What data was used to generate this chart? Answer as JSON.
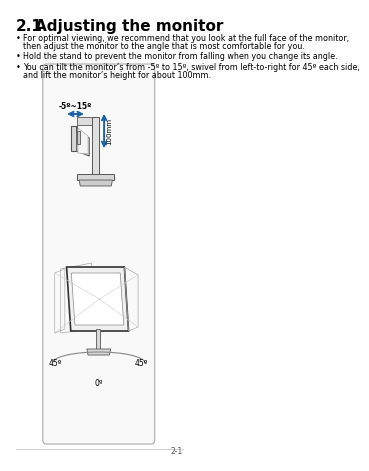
{
  "title_num": "2.1",
  "title_text": "Adjusting the monitor",
  "bullet1_line1": "For optimal viewing, we recommend that you look at the full face of the monitor,",
  "bullet1_line2": "then adjust the monitor to the angle that is most comfortable for you.",
  "bullet2": "Hold the stand to prevent the monitor from falling when you change its angle.",
  "bullet3_line1": "You can tilt the monitor’s from -5º to 15º, swivel from left-to-right for 45º each side,",
  "bullet3_line2": "and lift the monitor’s height for about 100mm.",
  "label_tilt": "-5º~15º",
  "label_height": "100mm",
  "label_45_left": "45º",
  "label_45_right": "45º",
  "label_0": "0º",
  "page_num": "2-1",
  "bg_color": "#ffffff",
  "text_color": "#000000",
  "arrow_color": "#1a5fa8",
  "box_edge_color": "#aaaaaa",
  "box_face_color": "#f9f9f9",
  "monitor_edge": "#555555",
  "monitor_fill_light": "#e8e8e8",
  "monitor_fill_mid": "#d8d8d8",
  "stand_fill": "#dddddd",
  "ghost_edge": "#888888"
}
